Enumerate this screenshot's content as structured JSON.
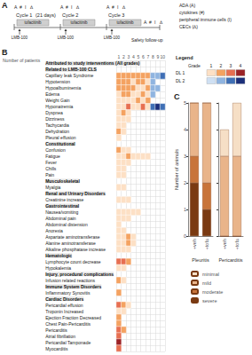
{
  "panel_labels": [
    "A",
    "B",
    "C"
  ],
  "panel_a": {
    "markers": [
      {
        "text": "ADA (A)",
        "symbol": "A"
      },
      {
        "text": "cytokines (#)",
        "symbol": "#"
      },
      {
        "text": "peripheral immune cells (I)",
        "symbol": "I"
      },
      {
        "text": "CECs (∆)",
        "symbol": "∆"
      }
    ],
    "cycles": [
      "Cycle 1",
      "Cycle 2",
      "Cycle 3"
    ],
    "cycle_length": "(21 days)",
    "drug_bar": "tofacitinib",
    "infusion": "LMB-100",
    "follow_up": "Safety follow-up"
  },
  "chart_data": [
    {
      "type": "heatmap",
      "xlabel": "Number of patients",
      "categories": [
        1,
        2,
        3,
        4,
        5,
        6,
        7,
        8,
        9,
        10
      ],
      "grid": true,
      "legend": "right",
      "legend_title": "Legend",
      "grade_title": "Grade",
      "grades": [
        1,
        2,
        3,
        4
      ],
      "series": [
        {
          "name": "DL 1",
          "colors": [
            "#fde0c5",
            "#f4a261",
            "#e76f51",
            "#9b2226"
          ]
        },
        {
          "name": "DL 2",
          "colors": [
            "#cfe0f3",
            "#8fb4e0",
            "#3f6fb5",
            "#1b2f7a"
          ]
        }
      ],
      "patient_dose": [
        "DL 1",
        "DL 1",
        "DL 1",
        "DL 1",
        "DL 1",
        "DL 1",
        "DL 1",
        "DL 2",
        "DL 2",
        "DL 2"
      ],
      "rows": [
        {
          "label": "Attributed to study interventions (All grades)",
          "header": true
        },
        {
          "label": "Related to LMB-100 CLS",
          "header": true
        },
        {
          "label": "Capillary leak Syndrome",
          "grades": [
            2,
            2,
            2,
            2,
            2,
            2,
            2,
            2,
            2,
            3
          ]
        },
        {
          "label": "Hypotension",
          "grades": [
            2,
            2,
            2,
            1,
            2,
            2,
            1,
            2,
            null,
            null
          ]
        },
        {
          "label": "Hypoalbuminemia",
          "grades": [
            2,
            2,
            2,
            2,
            1,
            1,
            2,
            2,
            2,
            null
          ]
        },
        {
          "label": "Edema",
          "grades": [
            1,
            2,
            2,
            1,
            1,
            2,
            1,
            2,
            null,
            null
          ]
        },
        {
          "label": "Weight Gain",
          "grades": [
            1,
            1,
            1,
            1,
            2,
            1,
            2,
            null,
            null,
            null
          ]
        },
        {
          "label": "Hyponatremia",
          "grades": [
            1,
            1,
            3,
            1,
            1,
            3,
            1,
            3,
            4,
            3
          ]
        },
        {
          "label": "Dyspnea",
          "grades": [
            1,
            2,
            1,
            null,
            null,
            null,
            null,
            null,
            null,
            null
          ]
        },
        {
          "label": "Dizziness",
          "grades": [
            1,
            1,
            1,
            null,
            null,
            null,
            null,
            null,
            null,
            null
          ]
        },
        {
          "label": "Tachycardia",
          "grades": [
            1,
            1,
            null,
            null,
            null,
            null,
            null,
            null,
            null,
            null
          ]
        },
        {
          "label": "Dehydration",
          "grades": [
            2,
            1,
            null,
            null,
            null,
            null,
            null,
            null,
            null,
            null
          ]
        },
        {
          "label": "Pleural effusion",
          "grades": [
            1,
            null,
            null,
            null,
            null,
            null,
            null,
            null,
            null,
            null
          ]
        },
        {
          "label": "Constitutional",
          "header": true
        },
        {
          "label": "Confusion",
          "grades": [
            2,
            1,
            1,
            null,
            null,
            null,
            null,
            null,
            null,
            null
          ]
        },
        {
          "label": "Fatigue",
          "grades": [
            1,
            1,
            2,
            1,
            1,
            1,
            1,
            null,
            null,
            null
          ]
        },
        {
          "label": "Fever",
          "grades": [
            1,
            1,
            1,
            null,
            null,
            null,
            null,
            null,
            null,
            null
          ]
        },
        {
          "label": "Chills",
          "grades": [
            1,
            1,
            null,
            null,
            null,
            null,
            null,
            null,
            null,
            null
          ]
        },
        {
          "label": "Pain",
          "grades": [
            1,
            1,
            null,
            null,
            null,
            null,
            null,
            null,
            null,
            null
          ]
        },
        {
          "label": "Musculoskeletal",
          "header": true
        },
        {
          "label": "Myalgia",
          "grades": [
            1,
            1,
            null,
            null,
            null,
            null,
            null,
            null,
            null,
            null
          ]
        },
        {
          "label": "Renal and Urinary Disorders",
          "header": true
        },
        {
          "label": "Creatinine increase",
          "grades": [
            1,
            1,
            1,
            null,
            null,
            null,
            null,
            null,
            null,
            null
          ]
        },
        {
          "label": "Gastrointestinal",
          "header": true
        },
        {
          "label": "Nausea/vomiting",
          "grades": [
            1,
            1,
            1,
            1,
            1,
            null,
            null,
            null,
            null,
            null
          ]
        },
        {
          "label": "Abdominal pain",
          "grades": [
            1,
            1,
            1,
            null,
            null,
            null,
            null,
            null,
            null,
            null
          ]
        },
        {
          "label": "Abdominal distension",
          "grades": [
            1,
            null,
            null,
            null,
            null,
            null,
            null,
            null,
            null,
            null
          ]
        },
        {
          "label": "Anorexia",
          "grades": [
            1,
            1,
            null,
            null,
            null,
            null,
            null,
            null,
            null,
            null
          ]
        },
        {
          "label": "Aspartate aminotransferase",
          "grades": [
            1,
            1,
            2,
            1,
            null,
            null,
            null,
            null,
            null,
            null
          ]
        },
        {
          "label": "Alanine aminotransferase",
          "grades": [
            1,
            1,
            2,
            1,
            null,
            null,
            null,
            null,
            null,
            null
          ]
        },
        {
          "label": "Alkaline phosphatase increase",
          "grades": [
            1,
            1,
            1,
            null,
            null,
            null,
            null,
            null,
            null,
            null
          ]
        },
        {
          "label": "Hematologic",
          "header": true
        },
        {
          "label": "Lymphocyte count decrease",
          "grades": [
            3,
            3,
            2,
            null,
            null,
            null,
            null,
            null,
            null,
            null
          ]
        },
        {
          "label": "Hypokalemia",
          "grades": [
            1,
            1,
            null,
            null,
            null,
            null,
            null,
            null,
            null,
            null
          ]
        },
        {
          "label": "Injury, procedural complications",
          "header": true
        },
        {
          "label": "Infusion related reactions",
          "grades": [
            2,
            1,
            null,
            null,
            null,
            null,
            null,
            null,
            null,
            null
          ]
        },
        {
          "label": "Immune System Disorders",
          "header": true
        },
        {
          "label": "Inflammatory Synovitis",
          "grades": [
            2,
            null,
            null,
            null,
            null,
            null,
            null,
            null,
            null,
            null
          ]
        },
        {
          "label": "Cardiac Disorders",
          "header": true
        },
        {
          "label": "Pericardial effusion",
          "grades": [
            3,
            2,
            1,
            null,
            null,
            null,
            null,
            null,
            null,
            null
          ]
        },
        {
          "label": "Troponin Increased",
          "grades": [
            1,
            1,
            null,
            null,
            null,
            null,
            null,
            null,
            null,
            null
          ]
        },
        {
          "label": "Ejection Fraction Decreased",
          "grades": [
            2,
            null,
            null,
            null,
            null,
            null,
            null,
            null,
            null,
            null
          ]
        },
        {
          "label": "Chest Pain-Pericarditis",
          "grades": [
            2,
            null,
            null,
            null,
            null,
            null,
            null,
            null,
            null,
            null
          ]
        },
        {
          "label": "Pericarditis",
          "grades": [
            3,
            2,
            null,
            null,
            null,
            null,
            null,
            null,
            null,
            null
          ]
        },
        {
          "label": "Atrial fibrillation",
          "grades": [
            3,
            null,
            null,
            null,
            null,
            null,
            null,
            null,
            null,
            null
          ]
        },
        {
          "label": "Pericardial Tamponade",
          "grades": [
            4,
            null,
            null,
            null,
            null,
            null,
            null,
            null,
            null,
            null
          ]
        },
        {
          "label": "Myocarditis",
          "grades": [
            3,
            null,
            null,
            null,
            null,
            null,
            null,
            null,
            null,
            null
          ]
        }
      ]
    },
    {
      "type": "bar",
      "stacked": true,
      "categories": [
        "+veh",
        "+tofa"
      ],
      "xlabel": "Pleuritis",
      "ylabel": "Number of animals",
      "ylim": [
        0,
        5
      ],
      "yticks": [
        0,
        1,
        2,
        3,
        4,
        5
      ],
      "series": [
        {
          "name": "minimal",
          "color": "#f6dfc6",
          "values": [
            0,
            0
          ]
        },
        {
          "name": "mild",
          "color": "#e9b48a",
          "values": [
            2,
            3
          ]
        },
        {
          "name": "moderate",
          "color": "#c8743a",
          "values": [
            1,
            1
          ]
        },
        {
          "name": "severe",
          "color": "#7a3a12",
          "values": [
            2,
            1
          ]
        }
      ]
    },
    {
      "type": "bar",
      "stacked": true,
      "categories": [
        "+veh",
        "+tofa"
      ],
      "xlabel": "Pericarditis",
      "ylim": [
        0,
        5
      ],
      "yticks": [
        0,
        1,
        2,
        3,
        4,
        5
      ],
      "tick_labels": "x",
      "legend": "bottom",
      "series": [
        {
          "name": "minimal",
          "color": "#f6dfc6",
          "values": [
            1,
            2
          ]
        },
        {
          "name": "mild",
          "color": "#e9b48a",
          "values": [
            3,
            3
          ]
        },
        {
          "name": "moderate",
          "color": "#c8743a",
          "values": [
            0,
            0
          ]
        },
        {
          "name": "severe",
          "color": "#7a3a12",
          "values": [
            0,
            0
          ]
        }
      ]
    }
  ]
}
